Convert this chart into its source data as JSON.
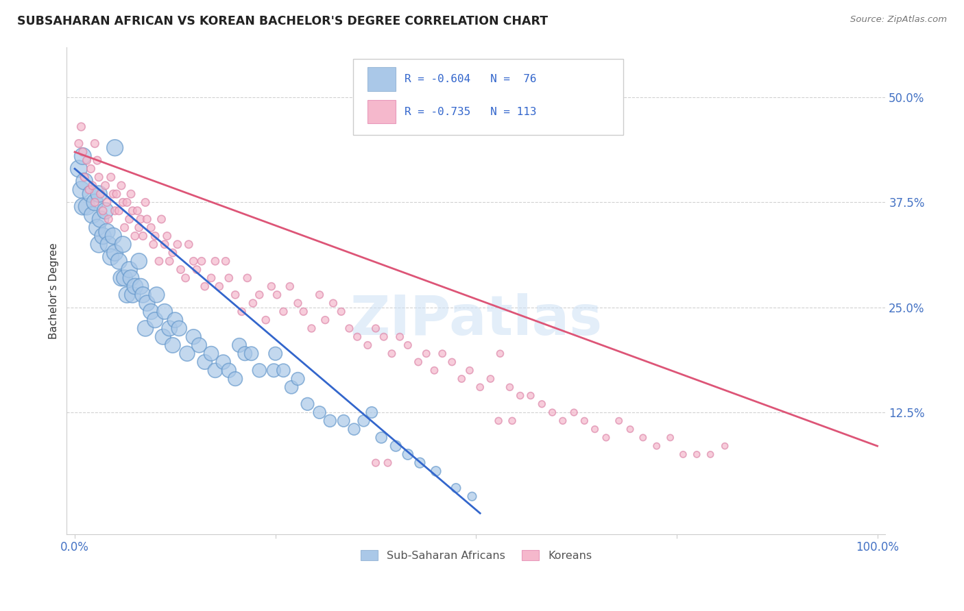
{
  "title": "SUBSAHARAN AFRICAN VS KOREAN BACHELOR'S DEGREE CORRELATION CHART",
  "source": "Source: ZipAtlas.com",
  "ylabel": "Bachelor's Degree",
  "ytick_labels": [
    "50.0%",
    "37.5%",
    "25.0%",
    "12.5%"
  ],
  "ytick_values": [
    0.5,
    0.375,
    0.25,
    0.125
  ],
  "ylim": [
    -0.02,
    0.56
  ],
  "xlim": [
    -0.01,
    1.01
  ],
  "watermark": "ZIPatlas",
  "legend_label_blue": "Sub-Saharan Africans",
  "legend_label_pink": "Koreans",
  "blue_color": "#aac8e8",
  "pink_color": "#f5b8cc",
  "blue_line_color": "#3366cc",
  "pink_line_color": "#dd5577",
  "blue_scatter": [
    [
      0.005,
      0.415
    ],
    [
      0.008,
      0.39
    ],
    [
      0.01,
      0.37
    ],
    [
      0.012,
      0.4
    ],
    [
      0.01,
      0.43
    ],
    [
      0.015,
      0.37
    ],
    [
      0.02,
      0.385
    ],
    [
      0.022,
      0.36
    ],
    [
      0.025,
      0.375
    ],
    [
      0.028,
      0.345
    ],
    [
      0.03,
      0.325
    ],
    [
      0.03,
      0.385
    ],
    [
      0.032,
      0.355
    ],
    [
      0.035,
      0.335
    ],
    [
      0.038,
      0.365
    ],
    [
      0.04,
      0.34
    ],
    [
      0.042,
      0.325
    ],
    [
      0.045,
      0.31
    ],
    [
      0.048,
      0.335
    ],
    [
      0.05,
      0.315
    ],
    [
      0.05,
      0.44
    ],
    [
      0.055,
      0.305
    ],
    [
      0.058,
      0.285
    ],
    [
      0.06,
      0.325
    ],
    [
      0.062,
      0.285
    ],
    [
      0.065,
      0.265
    ],
    [
      0.068,
      0.295
    ],
    [
      0.07,
      0.285
    ],
    [
      0.072,
      0.265
    ],
    [
      0.075,
      0.275
    ],
    [
      0.08,
      0.305
    ],
    [
      0.082,
      0.275
    ],
    [
      0.085,
      0.265
    ],
    [
      0.088,
      0.225
    ],
    [
      0.09,
      0.255
    ],
    [
      0.095,
      0.245
    ],
    [
      0.1,
      0.235
    ],
    [
      0.102,
      0.265
    ],
    [
      0.11,
      0.215
    ],
    [
      0.112,
      0.245
    ],
    [
      0.118,
      0.225
    ],
    [
      0.122,
      0.205
    ],
    [
      0.125,
      0.235
    ],
    [
      0.13,
      0.225
    ],
    [
      0.14,
      0.195
    ],
    [
      0.148,
      0.215
    ],
    [
      0.155,
      0.205
    ],
    [
      0.162,
      0.185
    ],
    [
      0.17,
      0.195
    ],
    [
      0.175,
      0.175
    ],
    [
      0.185,
      0.185
    ],
    [
      0.192,
      0.175
    ],
    [
      0.2,
      0.165
    ],
    [
      0.205,
      0.205
    ],
    [
      0.212,
      0.195
    ],
    [
      0.22,
      0.195
    ],
    [
      0.23,
      0.175
    ],
    [
      0.248,
      0.175
    ],
    [
      0.25,
      0.195
    ],
    [
      0.26,
      0.175
    ],
    [
      0.27,
      0.155
    ],
    [
      0.278,
      0.165
    ],
    [
      0.29,
      0.135
    ],
    [
      0.305,
      0.125
    ],
    [
      0.318,
      0.115
    ],
    [
      0.335,
      0.115
    ],
    [
      0.348,
      0.105
    ],
    [
      0.36,
      0.115
    ],
    [
      0.37,
      0.125
    ],
    [
      0.382,
      0.095
    ],
    [
      0.4,
      0.085
    ],
    [
      0.415,
      0.075
    ],
    [
      0.43,
      0.065
    ],
    [
      0.45,
      0.055
    ],
    [
      0.475,
      0.035
    ],
    [
      0.495,
      0.025
    ]
  ],
  "pink_scatter": [
    [
      0.005,
      0.445
    ],
    [
      0.008,
      0.465
    ],
    [
      0.01,
      0.435
    ],
    [
      0.012,
      0.405
    ],
    [
      0.015,
      0.425
    ],
    [
      0.018,
      0.39
    ],
    [
      0.02,
      0.415
    ],
    [
      0.022,
      0.395
    ],
    [
      0.025,
      0.375
    ],
    [
      0.025,
      0.445
    ],
    [
      0.028,
      0.425
    ],
    [
      0.03,
      0.405
    ],
    [
      0.032,
      0.385
    ],
    [
      0.035,
      0.365
    ],
    [
      0.038,
      0.395
    ],
    [
      0.04,
      0.375
    ],
    [
      0.042,
      0.355
    ],
    [
      0.045,
      0.405
    ],
    [
      0.048,
      0.385
    ],
    [
      0.05,
      0.365
    ],
    [
      0.052,
      0.385
    ],
    [
      0.055,
      0.365
    ],
    [
      0.058,
      0.395
    ],
    [
      0.06,
      0.375
    ],
    [
      0.062,
      0.345
    ],
    [
      0.065,
      0.375
    ],
    [
      0.068,
      0.355
    ],
    [
      0.07,
      0.385
    ],
    [
      0.072,
      0.365
    ],
    [
      0.075,
      0.335
    ],
    [
      0.078,
      0.365
    ],
    [
      0.08,
      0.345
    ],
    [
      0.082,
      0.355
    ],
    [
      0.085,
      0.335
    ],
    [
      0.088,
      0.375
    ],
    [
      0.09,
      0.355
    ],
    [
      0.095,
      0.345
    ],
    [
      0.098,
      0.325
    ],
    [
      0.1,
      0.335
    ],
    [
      0.105,
      0.305
    ],
    [
      0.108,
      0.355
    ],
    [
      0.112,
      0.325
    ],
    [
      0.115,
      0.335
    ],
    [
      0.118,
      0.305
    ],
    [
      0.122,
      0.315
    ],
    [
      0.128,
      0.325
    ],
    [
      0.132,
      0.295
    ],
    [
      0.138,
      0.285
    ],
    [
      0.142,
      0.325
    ],
    [
      0.148,
      0.305
    ],
    [
      0.152,
      0.295
    ],
    [
      0.158,
      0.305
    ],
    [
      0.162,
      0.275
    ],
    [
      0.17,
      0.285
    ],
    [
      0.175,
      0.305
    ],
    [
      0.18,
      0.275
    ],
    [
      0.188,
      0.305
    ],
    [
      0.192,
      0.285
    ],
    [
      0.2,
      0.265
    ],
    [
      0.208,
      0.245
    ],
    [
      0.215,
      0.285
    ],
    [
      0.222,
      0.255
    ],
    [
      0.23,
      0.265
    ],
    [
      0.238,
      0.235
    ],
    [
      0.245,
      0.275
    ],
    [
      0.252,
      0.265
    ],
    [
      0.26,
      0.245
    ],
    [
      0.268,
      0.275
    ],
    [
      0.278,
      0.255
    ],
    [
      0.285,
      0.245
    ],
    [
      0.295,
      0.225
    ],
    [
      0.305,
      0.265
    ],
    [
      0.312,
      0.235
    ],
    [
      0.322,
      0.255
    ],
    [
      0.332,
      0.245
    ],
    [
      0.342,
      0.225
    ],
    [
      0.352,
      0.215
    ],
    [
      0.365,
      0.205
    ],
    [
      0.375,
      0.225
    ],
    [
      0.385,
      0.215
    ],
    [
      0.395,
      0.195
    ],
    [
      0.405,
      0.215
    ],
    [
      0.415,
      0.205
    ],
    [
      0.428,
      0.185
    ],
    [
      0.438,
      0.195
    ],
    [
      0.448,
      0.175
    ],
    [
      0.458,
      0.195
    ],
    [
      0.47,
      0.185
    ],
    [
      0.482,
      0.165
    ],
    [
      0.492,
      0.175
    ],
    [
      0.505,
      0.155
    ],
    [
      0.518,
      0.165
    ],
    [
      0.53,
      0.195
    ],
    [
      0.542,
      0.155
    ],
    [
      0.555,
      0.145
    ],
    [
      0.568,
      0.145
    ],
    [
      0.582,
      0.135
    ],
    [
      0.595,
      0.125
    ],
    [
      0.608,
      0.115
    ],
    [
      0.622,
      0.125
    ],
    [
      0.635,
      0.115
    ],
    [
      0.648,
      0.105
    ],
    [
      0.662,
      0.095
    ],
    [
      0.678,
      0.115
    ],
    [
      0.692,
      0.105
    ],
    [
      0.708,
      0.095
    ],
    [
      0.725,
      0.085
    ],
    [
      0.742,
      0.095
    ],
    [
      0.758,
      0.075
    ],
    [
      0.775,
      0.075
    ],
    [
      0.792,
      0.075
    ],
    [
      0.81,
      0.085
    ],
    [
      0.528,
      0.115
    ],
    [
      0.545,
      0.115
    ],
    [
      0.375,
      0.065
    ],
    [
      0.39,
      0.065
    ]
  ],
  "blue_line_x": [
    0.0,
    0.505
  ],
  "blue_line_y": [
    0.415,
    0.005
  ],
  "pink_line_x": [
    0.0,
    1.0
  ],
  "pink_line_y": [
    0.435,
    0.085
  ],
  "blue_sizes_base": 90
}
